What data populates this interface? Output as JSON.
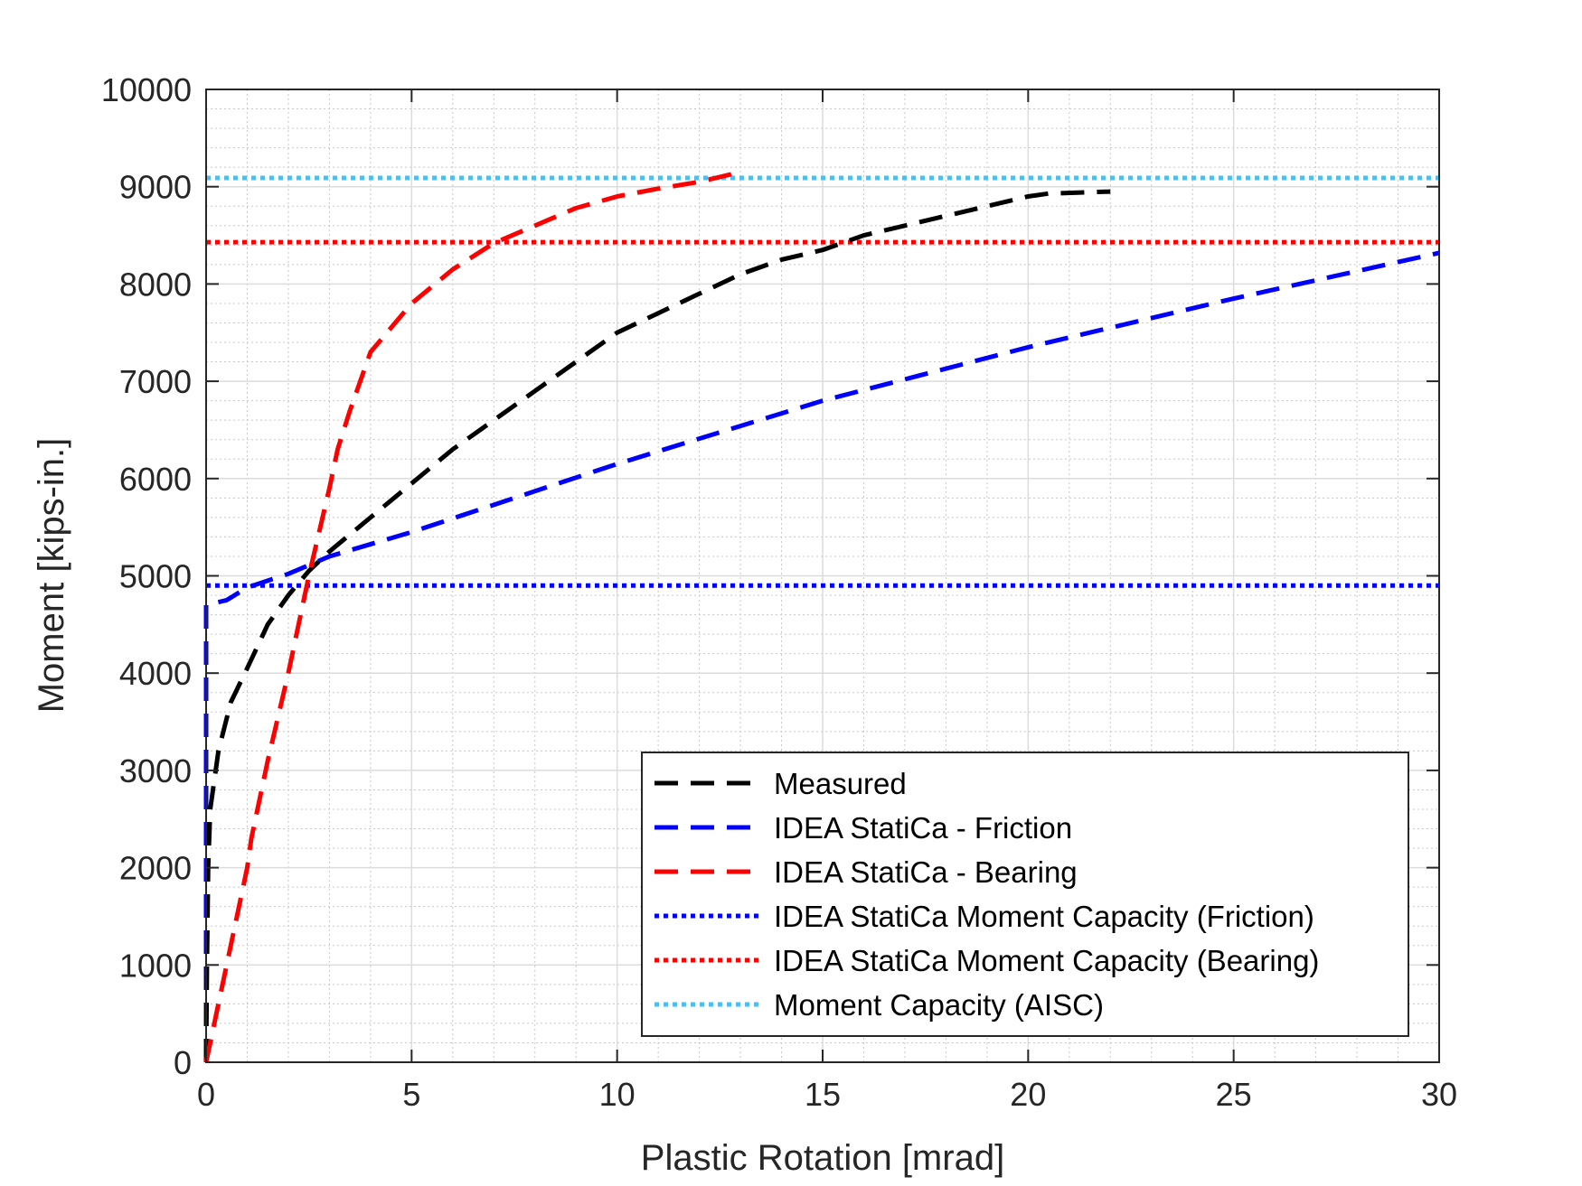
{
  "chart_data": {
    "type": "line",
    "title": "",
    "xlabel": "Plastic Rotation [mrad]",
    "ylabel": "Moment [kips-in.]",
    "xlim": [
      0,
      30
    ],
    "ylim": [
      0,
      10000
    ],
    "x_ticks": [
      0,
      5,
      10,
      15,
      20,
      25,
      30
    ],
    "y_ticks": [
      0,
      1000,
      2000,
      3000,
      4000,
      5000,
      6000,
      7000,
      8000,
      9000,
      10000
    ],
    "x_tick_labels": [
      "0",
      "5",
      "10",
      "15",
      "20",
      "25",
      "30"
    ],
    "y_tick_labels": [
      "0",
      "1000",
      "2000",
      "3000",
      "4000",
      "5000",
      "6000",
      "7000",
      "8000",
      "9000",
      "10000"
    ],
    "grid": true,
    "minor_grid": true,
    "legend_position": "bottom-right",
    "series": [
      {
        "name": "Measured",
        "color": "#000000",
        "style": "dashed",
        "points": [
          [
            0,
            0
          ],
          [
            0.02,
            1000
          ],
          [
            0.05,
            2000
          ],
          [
            0.1,
            2600
          ],
          [
            0.3,
            3200
          ],
          [
            0.6,
            3700
          ],
          [
            1.0,
            4050
          ],
          [
            1.5,
            4500
          ],
          [
            2.0,
            4800
          ],
          [
            2.5,
            5050
          ],
          [
            3.0,
            5250
          ],
          [
            4.0,
            5600
          ],
          [
            5.0,
            5950
          ],
          [
            6.0,
            6300
          ],
          [
            7.0,
            6600
          ],
          [
            8.0,
            6900
          ],
          [
            9.0,
            7200
          ],
          [
            10.0,
            7500
          ],
          [
            11.0,
            7700
          ],
          [
            12.0,
            7900
          ],
          [
            13.0,
            8100
          ],
          [
            14.0,
            8250
          ],
          [
            15.0,
            8350
          ],
          [
            16.0,
            8500
          ],
          [
            17.0,
            8600
          ],
          [
            18.0,
            8700
          ],
          [
            19.0,
            8800
          ],
          [
            20.0,
            8900
          ],
          [
            20.5,
            8930
          ],
          [
            22.0,
            8950
          ]
        ]
      },
      {
        "name": "IDEA StatiCa - Friction",
        "color": "#0000ff",
        "style": "dashed",
        "points": [
          [
            0,
            0
          ],
          [
            0,
            4700
          ],
          [
            0.5,
            4750
          ],
          [
            1.0,
            4880
          ],
          [
            2.0,
            5020
          ],
          [
            3.0,
            5200
          ],
          [
            5.0,
            5450
          ],
          [
            10.0,
            6150
          ],
          [
            15.0,
            6800
          ],
          [
            20.0,
            7350
          ],
          [
            25.0,
            7850
          ],
          [
            30.0,
            8320
          ]
        ]
      },
      {
        "name": "IDEA StatiCa - Bearing",
        "color": "#ff0000",
        "style": "dashed",
        "points": [
          [
            0,
            0
          ],
          [
            0.5,
            1000
          ],
          [
            1.0,
            2000
          ],
          [
            1.1,
            2300
          ],
          [
            1.5,
            3100
          ],
          [
            2.0,
            4000
          ],
          [
            2.5,
            5000
          ],
          [
            3.0,
            5900
          ],
          [
            3.2,
            6300
          ],
          [
            3.5,
            6700
          ],
          [
            4.0,
            7300
          ],
          [
            5.0,
            7800
          ],
          [
            6.0,
            8150
          ],
          [
            7.0,
            8420
          ],
          [
            8.0,
            8600
          ],
          [
            9.0,
            8780
          ],
          [
            10.0,
            8900
          ],
          [
            11.0,
            8980
          ],
          [
            12.0,
            9050
          ],
          [
            13.0,
            9150
          ]
        ]
      },
      {
        "name": "IDEA StatiCa Moment Capacity (Friction)",
        "color": "#0000ff",
        "style": "dotted",
        "points": [
          [
            0,
            4900
          ],
          [
            30,
            4900
          ]
        ]
      },
      {
        "name": "IDEA StatiCa Moment Capacity (Bearing)",
        "color": "#ff0000",
        "style": "dotted",
        "points": [
          [
            0,
            8430
          ],
          [
            30,
            8430
          ]
        ]
      },
      {
        "name": "Moment Capacity (AISC)",
        "color": "#4dbeee",
        "style": "dotted",
        "points": [
          [
            0,
            9090
          ],
          [
            30,
            9090
          ]
        ]
      }
    ]
  }
}
